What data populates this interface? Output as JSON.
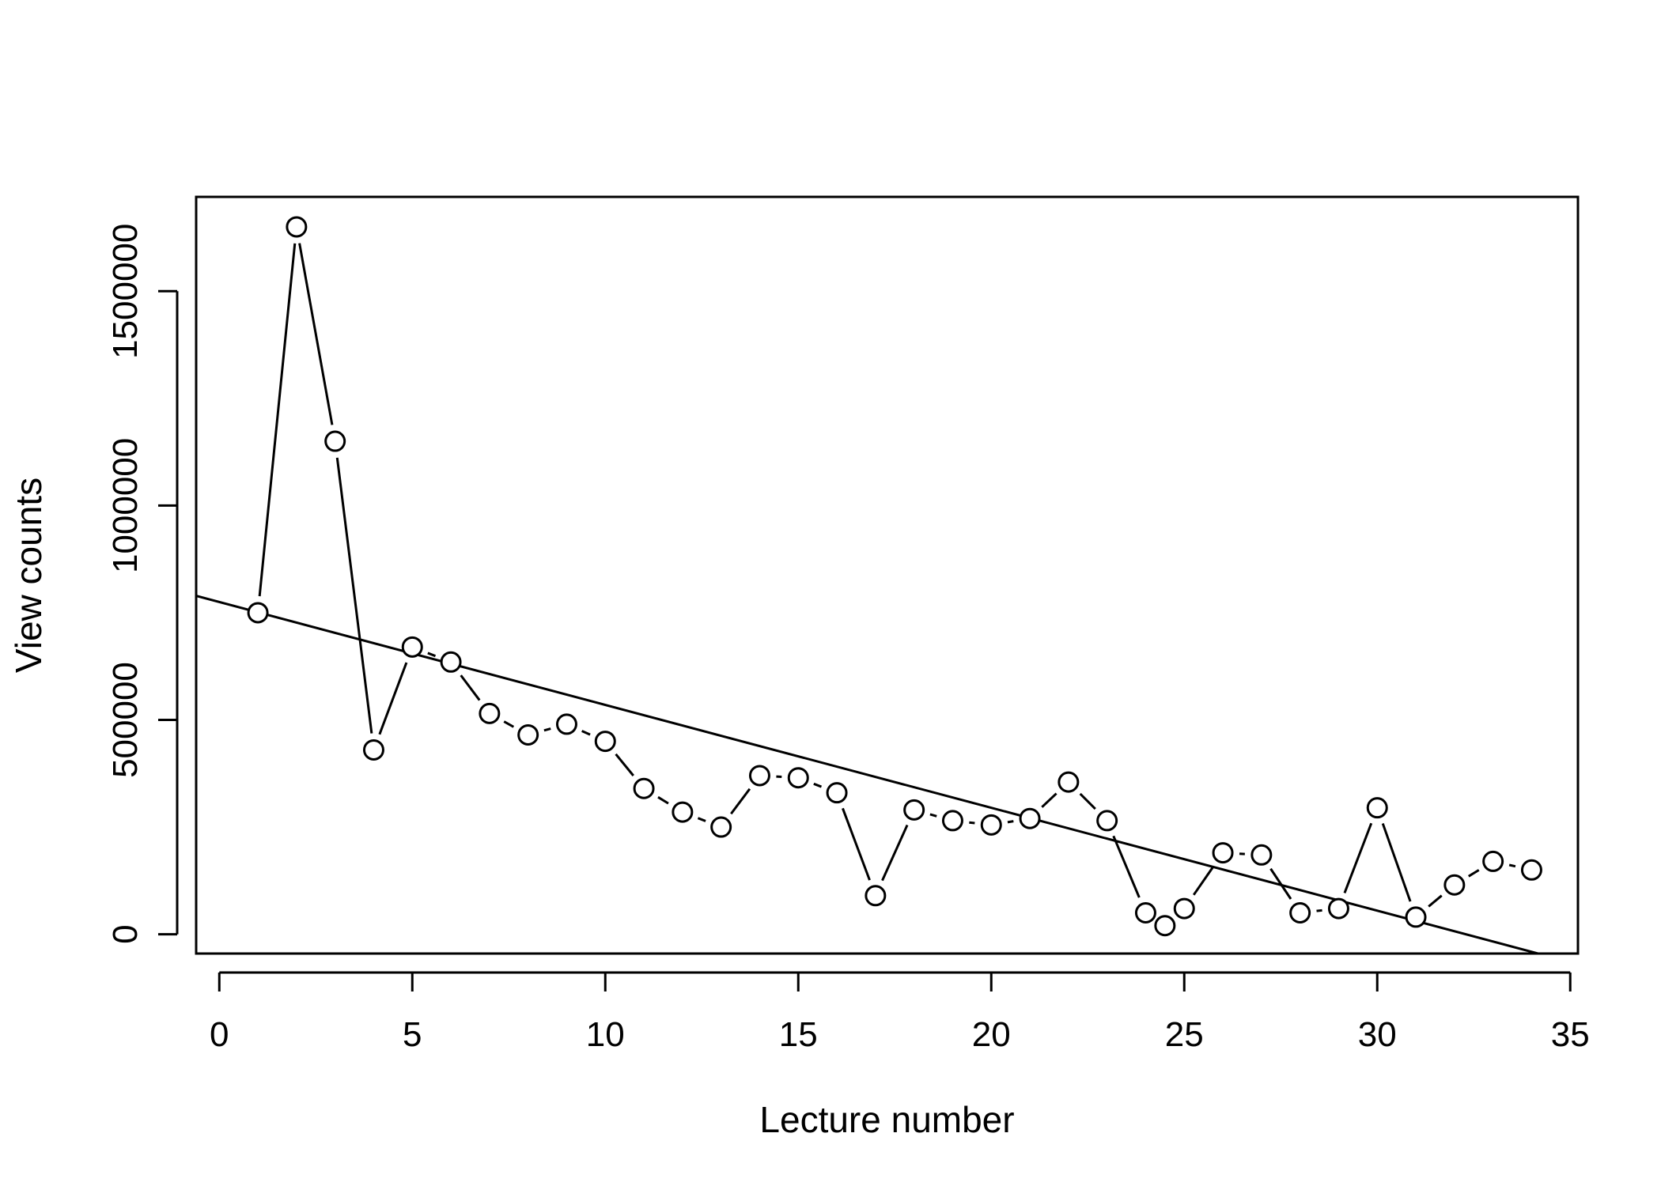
{
  "chart_data": {
    "type": "scatter",
    "title": "",
    "xlabel": "Lecture number",
    "ylabel": "View counts",
    "xlim": [
      -0.6,
      35.2
    ],
    "ylim": [
      -45000,
      1720000
    ],
    "x_ticks": [
      0,
      5,
      10,
      15,
      20,
      25,
      30,
      35
    ],
    "x_tick_labels": [
      "0",
      "5",
      "10",
      "15",
      "20",
      "25",
      "30",
      "35"
    ],
    "y_ticks": [
      0,
      500000,
      1000000,
      1500000
    ],
    "y_tick_labels": [
      "0",
      "500000",
      "1000000",
      "1500000"
    ],
    "grid": false,
    "legend": "none",
    "series": [
      {
        "style": "points-connected",
        "x": [
          1,
          2,
          3,
          4,
          5,
          6,
          7,
          8,
          9,
          10,
          11,
          12,
          13,
          14,
          15,
          16,
          17,
          18,
          19,
          20,
          21,
          22,
          23,
          24,
          24.5,
          25,
          26,
          27,
          28,
          29,
          30,
          31,
          32,
          33,
          34
        ],
        "y": [
          750000,
          1650000,
          1150000,
          430000,
          670000,
          635000,
          515000,
          465000,
          490000,
          450000,
          340000,
          285000,
          250000,
          370000,
          365000,
          330000,
          90000,
          290000,
          265000,
          255000,
          270000,
          355000,
          265000,
          50000,
          20000,
          60000,
          190000,
          185000,
          50000,
          60000,
          295000,
          40000,
          115000,
          170000,
          150000
        ]
      }
    ],
    "regression_line": {
      "intercept": 775000,
      "slope": -24000
    }
  }
}
